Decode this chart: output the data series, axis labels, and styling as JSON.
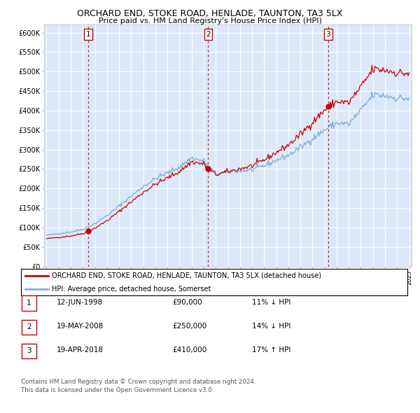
{
  "title": "ORCHARD END, STOKE ROAD, HENLADE, TAUNTON, TA3 5LX",
  "subtitle": "Price paid vs. HM Land Registry's House Price Index (HPI)",
  "background_color": "#ffffff",
  "plot_bg_color": "#dce8f8",
  "ylim": [
    0,
    620000
  ],
  "yticks": [
    0,
    50000,
    100000,
    150000,
    200000,
    250000,
    300000,
    350000,
    400000,
    450000,
    500000,
    550000,
    600000
  ],
  "ytick_labels": [
    "£0",
    "£50K",
    "£100K",
    "£150K",
    "£200K",
    "£250K",
    "£300K",
    "£350K",
    "£400K",
    "£450K",
    "£500K",
    "£550K",
    "£600K"
  ],
  "sale_times": [
    1998.458,
    2008.375,
    2018.292
  ],
  "sale_prices": [
    90000,
    250000,
    410000
  ],
  "sale_labels": [
    "1",
    "2",
    "3"
  ],
  "red_line_color": "#cc0000",
  "blue_line_color": "#7aadda",
  "marker_color": "#cc0000",
  "dashed_line_color": "#cc0000",
  "legend_label_red": "ORCHARD END, STOKE ROAD, HENLADE, TAUNTON, TA3 5LX (detached house)",
  "legend_label_blue": "HPI: Average price, detached house, Somerset",
  "table_rows": [
    {
      "label": "1",
      "date": "12-JUN-1998",
      "price": "£90,000",
      "hpi": "11% ↓ HPI"
    },
    {
      "label": "2",
      "date": "19-MAY-2008",
      "price": "£250,000",
      "hpi": "14% ↓ HPI"
    },
    {
      "label": "3",
      "date": "19-APR-2018",
      "price": "£410,000",
      "hpi": "17% ↑ HPI"
    }
  ],
  "footer1": "Contains HM Land Registry data © Crown copyright and database right 2024.",
  "footer2": "This data is licensed under the Open Government Licence v3.0.",
  "xstart_year": 1995,
  "xend_year": 2025,
  "hpi_anchors_x": [
    1995.0,
    1996.0,
    1997.0,
    1998.0,
    1999.0,
    2000.0,
    2001.0,
    2002.0,
    2003.0,
    2004.0,
    2005.0,
    2006.0,
    2007.0,
    2008.0,
    2009.0,
    2010.0,
    2011.0,
    2012.0,
    2013.0,
    2014.0,
    2015.0,
    2016.0,
    2017.0,
    2018.0,
    2019.0,
    2020.0,
    2021.0,
    2022.0,
    2023.0,
    2024.0,
    2025.0
  ],
  "hpi_anchors_y": [
    80000,
    84000,
    88000,
    95000,
    110000,
    130000,
    155000,
    180000,
    205000,
    225000,
    240000,
    255000,
    278000,
    270000,
    238000,
    242000,
    245000,
    248000,
    258000,
    272000,
    285000,
    305000,
    328000,
    350000,
    368000,
    365000,
    400000,
    440000,
    438000,
    432000,
    430000
  ]
}
